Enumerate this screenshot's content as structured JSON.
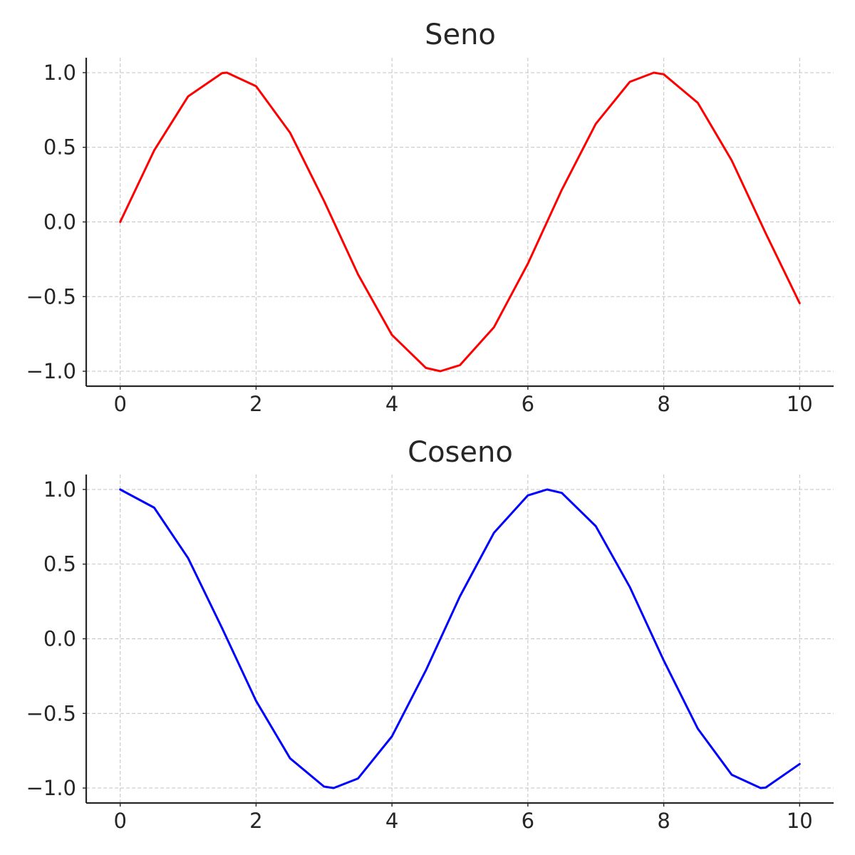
{
  "chart_data": [
    {
      "type": "line",
      "title": "Seno",
      "xlabel": "",
      "ylabel": "",
      "xlim": [
        -0.5,
        10.5
      ],
      "ylim": [
        -1.1,
        1.1
      ],
      "x_ticks": [
        0,
        2,
        4,
        6,
        8,
        10
      ],
      "x_tick_labels": [
        "0",
        "2",
        "4",
        "6",
        "8",
        "10"
      ],
      "y_ticks": [
        1.0,
        0.5,
        0.0,
        -0.5,
        -1.0
      ],
      "y_tick_labels": [
        "1.0",
        "0.5",
        "0.0",
        "−0.5",
        "−1.0"
      ],
      "grid": true,
      "color": "#ff0000",
      "x": [
        0,
        0.5,
        1,
        1.5,
        1.571,
        2,
        2.5,
        3,
        3.5,
        4,
        4.5,
        4.712,
        5,
        5.5,
        6,
        6.5,
        7,
        7.5,
        7.854,
        8,
        8.5,
        9,
        9.5,
        10
      ],
      "y": [
        0.0,
        0.479,
        0.841,
        0.997,
        1.0,
        0.909,
        0.598,
        0.141,
        -0.351,
        -0.757,
        -0.978,
        -1.0,
        -0.959,
        -0.706,
        -0.279,
        0.215,
        0.657,
        0.938,
        1.0,
        0.989,
        0.798,
        0.412,
        -0.075,
        -0.544
      ]
    },
    {
      "type": "line",
      "title": "Coseno",
      "xlabel": "",
      "ylabel": "",
      "xlim": [
        -0.5,
        10.5
      ],
      "ylim": [
        -1.1,
        1.1
      ],
      "x_ticks": [
        0,
        2,
        4,
        6,
        8,
        10
      ],
      "x_tick_labels": [
        "0",
        "2",
        "4",
        "6",
        "8",
        "10"
      ],
      "y_ticks": [
        1.0,
        0.5,
        0.0,
        -0.5,
        -1.0
      ],
      "y_tick_labels": [
        "1.0",
        "0.5",
        "0.0",
        "−0.5",
        "−1.0"
      ],
      "grid": true,
      "color": "#0000ff",
      "x": [
        0,
        0.5,
        1,
        1.5,
        2,
        2.5,
        3,
        3.142,
        3.5,
        4,
        4.5,
        5,
        5.5,
        6,
        6.283,
        6.5,
        7,
        7.5,
        8,
        8.5,
        9,
        9.425,
        9.5,
        10
      ],
      "y": [
        1.0,
        0.878,
        0.54,
        0.071,
        -0.416,
        -0.801,
        -0.99,
        -1.0,
        -0.936,
        -0.654,
        -0.211,
        0.284,
        0.709,
        0.96,
        1.0,
        0.977,
        0.754,
        0.347,
        -0.146,
        -0.602,
        -0.911,
        -1.0,
        -0.997,
        -0.839
      ]
    }
  ]
}
